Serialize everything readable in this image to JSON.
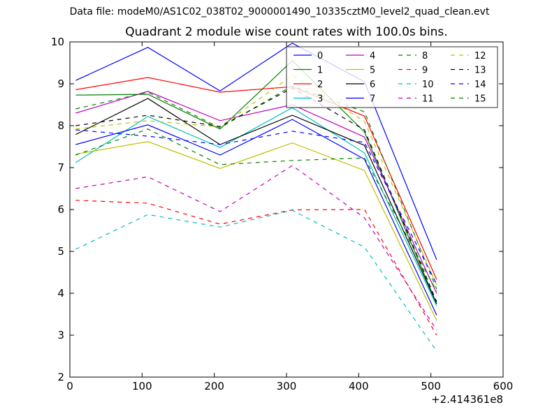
{
  "suptitle": "Data file: modeM0/AS1C02_038T02_9000001490_10335cztM0_level2_quad_clean.evt",
  "chart_data": {
    "type": "line",
    "title": "Quadrant 2 module wise count rates with 100.0s bins.",
    "xlabel": "",
    "ylabel": "",
    "x_offset_label": "+2.414361e8",
    "xlim": [
      0,
      600
    ],
    "ylim": [
      2,
      10
    ],
    "x_ticks": [
      0,
      100,
      200,
      300,
      400,
      500,
      600
    ],
    "y_ticks": [
      2,
      3,
      4,
      5,
      6,
      7,
      8,
      9,
      10
    ],
    "grid": false,
    "legend_placement": "top-right",
    "x": [
      8,
      108,
      208,
      308,
      408,
      508
    ],
    "series": [
      {
        "name": "0",
        "color": "#0000ff",
        "dash": "solid",
        "values": [
          9.08,
          9.87,
          8.83,
          9.97,
          9.05,
          4.8
        ]
      },
      {
        "name": "1",
        "color": "#008000",
        "dash": "solid",
        "values": [
          8.73,
          8.75,
          7.92,
          9.55,
          7.85,
          3.75
        ]
      },
      {
        "name": "2",
        "color": "#ff0000",
        "dash": "solid",
        "values": [
          8.86,
          9.15,
          8.8,
          8.93,
          8.23,
          4.33
        ]
      },
      {
        "name": "3",
        "color": "#00bfbf",
        "dash": "solid",
        "values": [
          7.12,
          8.22,
          7.48,
          8.43,
          7.35,
          3.7
        ]
      },
      {
        "name": "4",
        "color": "#bf00bf",
        "dash": "solid",
        "values": [
          8.3,
          8.82,
          8.12,
          8.5,
          7.73,
          4.0
        ]
      },
      {
        "name": "5",
        "color": "#bfbf00",
        "dash": "solid",
        "values": [
          7.32,
          7.62,
          6.98,
          7.59,
          6.93,
          3.35
        ]
      },
      {
        "name": "6",
        "color": "#000000",
        "dash": "solid",
        "values": [
          7.79,
          8.65,
          7.55,
          8.25,
          7.53,
          3.75
        ]
      },
      {
        "name": "7",
        "color": "#0000ff",
        "dash": "solid",
        "values": [
          7.55,
          8.02,
          7.3,
          8.15,
          7.2,
          3.48
        ]
      },
      {
        "name": "8",
        "color": "#008000",
        "dash": "dashed",
        "values": [
          8.4,
          8.8,
          7.95,
          8.95,
          8.33,
          4.1
        ]
      },
      {
        "name": "9",
        "color": "#ff0000",
        "dash": "dashed",
        "values": [
          6.22,
          6.15,
          5.65,
          5.99,
          6.0,
          3.0
        ]
      },
      {
        "name": "10",
        "color": "#00bfbf",
        "dash": "dashed",
        "values": [
          5.05,
          5.88,
          5.58,
          5.98,
          5.1,
          2.62
        ]
      },
      {
        "name": "11",
        "color": "#bf00bf",
        "dash": "dashed",
        "values": [
          6.5,
          6.78,
          5.95,
          7.05,
          5.8,
          3.12
        ]
      },
      {
        "name": "12",
        "color": "#bfbf00",
        "dash": "dashed",
        "values": [
          7.92,
          8.12,
          7.97,
          9.2,
          8.1,
          4.2
        ]
      },
      {
        "name": "13",
        "color": "#000000",
        "dash": "dashed",
        "values": [
          8.0,
          8.25,
          7.98,
          8.9,
          7.9,
          3.8
        ]
      },
      {
        "name": "14",
        "color": "#0000ff",
        "dash": "dashed",
        "values": [
          7.9,
          7.75,
          7.55,
          7.87,
          7.6,
          4.22
        ]
      },
      {
        "name": "15",
        "color": "#008000",
        "dash": "dashed",
        "values": [
          7.3,
          7.92,
          7.07,
          7.17,
          7.23,
          4.05
        ]
      }
    ]
  }
}
